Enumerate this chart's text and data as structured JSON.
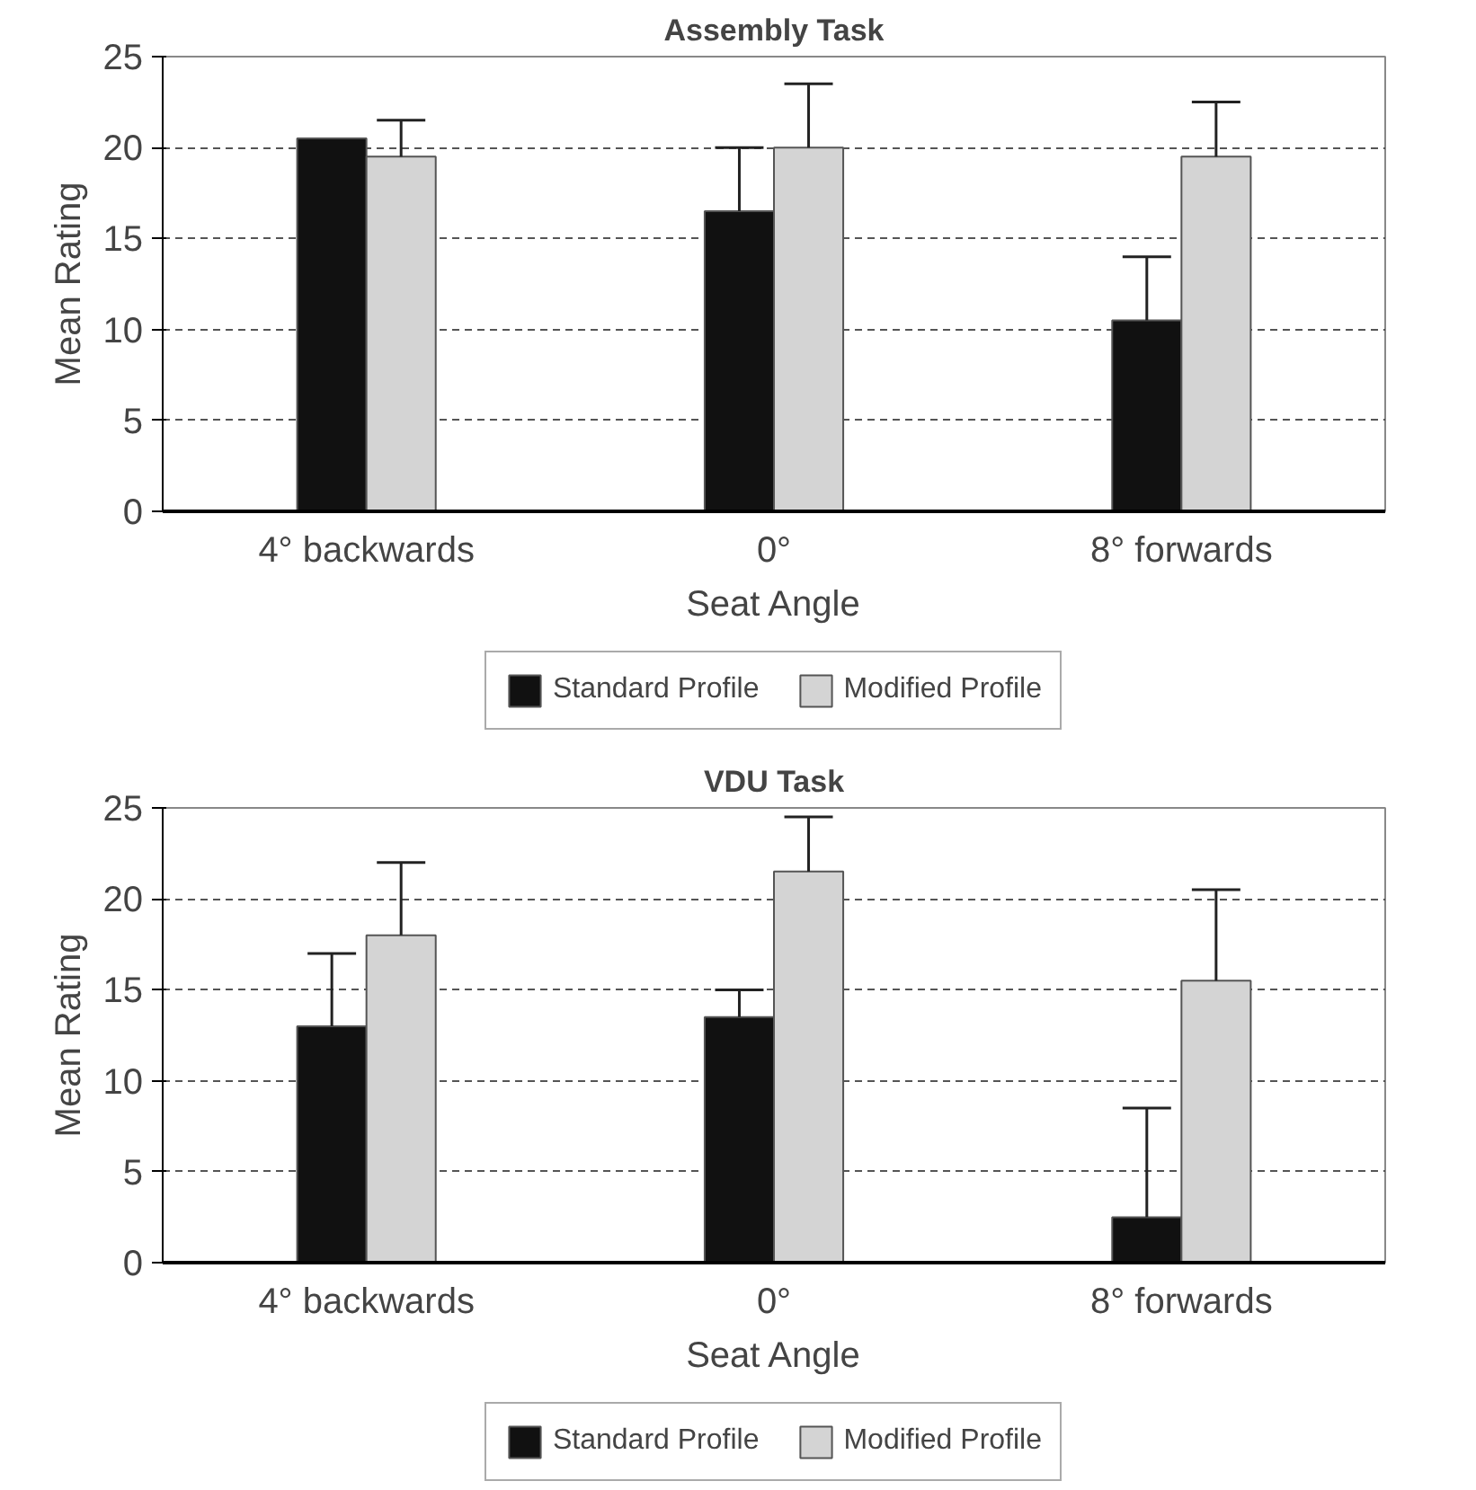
{
  "chart_data": [
    {
      "type": "bar",
      "title": "Assembly Task",
      "xlabel": "Seat Angle",
      "ylabel": "Mean Rating",
      "categories": [
        "4° backwards",
        "0°",
        "8° forwards"
      ],
      "ylim": [
        0,
        25
      ],
      "yticks": [
        0,
        5,
        10,
        15,
        20,
        25
      ],
      "grid": "y",
      "legend": "bottom",
      "series": [
        {
          "name": "Standard Profile",
          "color": "#111111",
          "values": [
            20.5,
            16.5,
            10.5
          ],
          "errors": [
            null,
            [
              16.5,
              20
            ],
            [
              10.5,
              14
            ]
          ]
        },
        {
          "name": "Modified Profile",
          "color": "#d4d4d4",
          "values": [
            19.5,
            20,
            19.5
          ],
          "errors": [
            [
              19.5,
              21.5
            ],
            [
              20,
              23.5
            ],
            [
              19.5,
              22.5
            ]
          ]
        }
      ]
    },
    {
      "type": "bar",
      "title": "VDU Task",
      "xlabel": "Seat Angle",
      "ylabel": "Mean Rating",
      "categories": [
        "4° backwards",
        "0°",
        "8° forwards"
      ],
      "ylim": [
        0,
        25
      ],
      "yticks": [
        0,
        5,
        10,
        15,
        20,
        25
      ],
      "grid": "y",
      "legend": "bottom",
      "series": [
        {
          "name": "Standard Profile",
          "color": "#111111",
          "values": [
            13,
            13.5,
            2.5
          ],
          "errors": [
            [
              13,
              17
            ],
            [
              13.5,
              15
            ],
            [
              2.5,
              8.5
            ]
          ]
        },
        {
          "name": "Modified Profile",
          "color": "#d4d4d4",
          "values": [
            18,
            21.5,
            15.5
          ],
          "errors": [
            [
              18,
              22
            ],
            [
              21.5,
              24.5
            ],
            [
              15.5,
              20.5
            ]
          ]
        }
      ]
    }
  ]
}
